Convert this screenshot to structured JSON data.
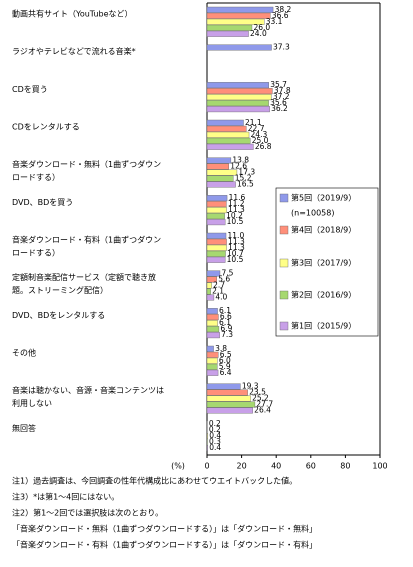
{
  "chart_data": {
    "type": "hbar",
    "categories": [
      [
        "動画共有サイト（YouTubeなど）"
      ],
      [
        "ラジオやテレビなどで流れる音楽*"
      ],
      [
        "CDを買う"
      ],
      [
        "CDをレンタルする"
      ],
      [
        "音楽ダウンロード・無料（1曲ずつダウン",
        "ロードする）"
      ],
      [
        "DVD、BDを買う"
      ],
      [
        "音楽ダウンロード・有料（1曲ずつダウン",
        "ロードする）"
      ],
      [
        "定額制音楽配信サービス（定額で聴き放",
        "題。ストリーミング配信）"
      ],
      [
        "DVD、BDをレンタルする"
      ],
      [
        "その他"
      ],
      [
        "音楽は聴かない、音源・音楽コンテンツは",
        "利用しない"
      ],
      [
        "無回答"
      ]
    ],
    "series": [
      {
        "name": "第5回（2019/9）",
        "color": "#8f99ea",
        "values": [
          38.2,
          37.3,
          35.7,
          21.1,
          13.8,
          11.6,
          11.0,
          7.5,
          6.1,
          3.8,
          19.3,
          0.2
        ],
        "value_labels": [
          "38.2",
          "37.3",
          "35.7",
          "21.1",
          "13.8",
          "11.6",
          "11.0",
          "7.5",
          "6.1",
          "3.8",
          "19.3",
          "0.2"
        ]
      },
      {
        "name": "第4回（2018/9）",
        "color": "#ff8f7a",
        "values": [
          36.6,
          null,
          37.8,
          22.7,
          12.6,
          11.2,
          11.3,
          5.6,
          6.6,
          6.5,
          23.5,
          0.2
        ],
        "value_labels": [
          "36.6",
          null,
          "37.8",
          "22.7",
          "12.6",
          "11.2",
          "11.3",
          "5.6",
          "6.6",
          "6.5",
          "23.5",
          "0.2"
        ]
      },
      {
        "name": "第3回（2017/9）",
        "color": "#ffff88",
        "values": [
          33.1,
          null,
          37.2,
          24.3,
          17.3,
          11.3,
          11.3,
          2.7,
          6.1,
          6.0,
          25.2,
          0.4
        ],
        "value_labels": [
          "33.1",
          null,
          "37.2",
          "24.3",
          "17.3",
          "11.3",
          "11.3",
          "2.7",
          "6.1",
          "6.0",
          "25.2",
          "0.4"
        ]
      },
      {
        "name": "第2回（2016/9）",
        "color": "#a6d870",
        "values": [
          26.0,
          null,
          35.6,
          25.0,
          15.2,
          10.2,
          10.7,
          2.1,
          6.9,
          5.9,
          27.7,
          0.3
        ],
        "value_labels": [
          "26.0",
          null,
          "35.6",
          "25.0",
          "15.2",
          "10.2",
          "10.7",
          "2.1",
          "6.9",
          "5.9",
          "27.7",
          "0.3"
        ]
      },
      {
        "name": "第1回（2015/9）",
        "color": "#c8a0e8",
        "values": [
          24.0,
          null,
          36.2,
          26.8,
          16.5,
          10.5,
          10.5,
          4.0,
          7.3,
          6.4,
          26.4,
          0.4
        ],
        "value_labels": [
          "24.0",
          null,
          "36.2",
          "26.8",
          "16.5",
          "10.5",
          "10.5",
          "4.0",
          "7.3",
          "6.4",
          "26.4",
          "0.4"
        ]
      }
    ],
    "legend_note": "(n=10058)",
    "xlabel": "(%)",
    "xlim": [
      0,
      100
    ],
    "xticks": [
      0,
      20,
      40,
      60,
      80,
      100
    ],
    "notes": [
      "注1）過去調査は、今回調査の性年代構成比にあわせてウエイトバックした値。",
      "注3）*は第1～4回にはない。",
      "注2）第1～2回では選択肢は次のとおり。",
      "「音楽ダウンロード・無料（1曲ずつダウンロードする）」は「ダウンロード・無料」",
      "「音楽ダウンロード・有料（1曲ずつダウンロードする）」は「ダウンロード・有料」"
    ]
  }
}
